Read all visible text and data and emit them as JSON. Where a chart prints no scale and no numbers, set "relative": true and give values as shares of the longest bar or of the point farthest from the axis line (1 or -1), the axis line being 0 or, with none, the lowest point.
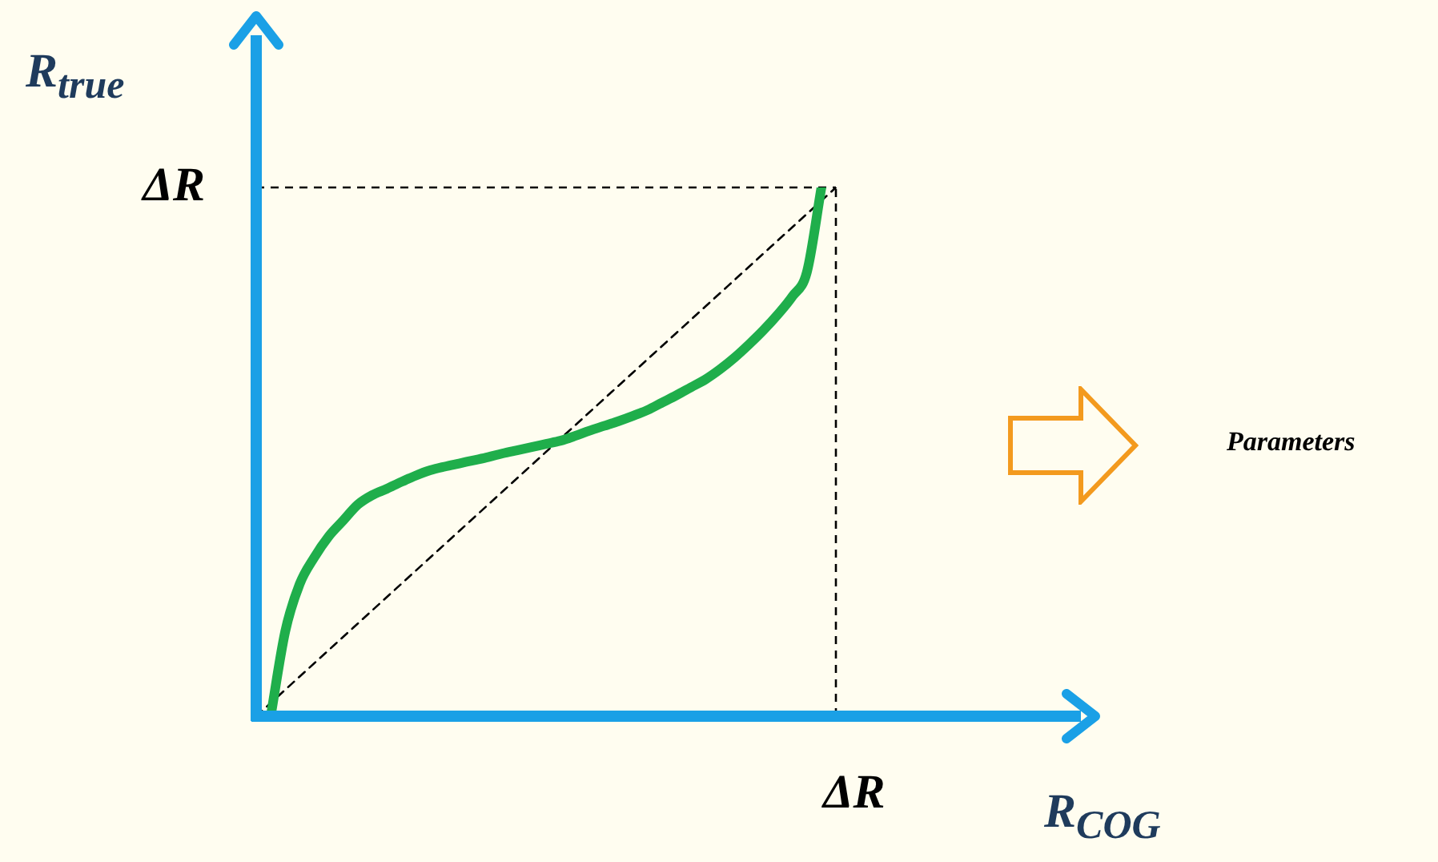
{
  "chart_data": {
    "type": "line",
    "relative": true,
    "xlabel": "R$_{COG}$",
    "ylabel": "R$_{true}$",
    "tick_labels": false,
    "legend": false,
    "marker": "none",
    "categories": [
      null,
      null,
      null,
      null,
      null,
      null,
      null,
      null,
      null,
      null,
      null,
      null,
      null,
      null,
      null,
      null,
      null,
      null,
      null,
      null,
      null,
      null,
      null,
      null,
      null,
      null,
      null,
      null,
      null,
      null,
      null,
      null,
      null,
      null,
      null,
      null,
      null,
      null,
      null,
      null,
      null
    ],
    "series": [
      {
        "color": "#1fae4b",
        "line_style": "solid",
        "values": [
          null,
          0,
          0.16,
          0.25,
          0.3,
          0.34,
          0.37,
          0.4,
          0.418,
          0.43,
          0.443,
          0.455,
          0.465,
          0.472,
          0.478,
          0.484,
          0.49,
          0.497,
          0.503,
          0.509,
          0.515,
          0.521,
          0.53,
          0.54,
          0.549,
          0.558,
          0.568,
          0.579,
          0.593,
          0.607,
          0.622,
          0.637,
          0.656,
          0.678,
          0.703,
          0.73,
          0.76,
          0.794,
          0.84,
          1,
          null
        ]
      },
      {
        "color": "#000000",
        "line_style": "dashed",
        "values": [
          0,
          0.025,
          0.05,
          0.075,
          0.1,
          0.125,
          0.15,
          0.175,
          0.2,
          0.225,
          0.25,
          0.275,
          0.3,
          0.325,
          0.35,
          0.375,
          0.4,
          0.425,
          0.45,
          0.475,
          0.5,
          0.525,
          0.55,
          0.575,
          0.6,
          0.625,
          0.65,
          0.675,
          0.7,
          0.725,
          0.75,
          0.775,
          0.8,
          0.825,
          0.85,
          0.875,
          0.9,
          0.925,
          0.95,
          0.975,
          1
        ]
      }
    ],
    "ref_lines": [
      {
        "axis": "y",
        "value": 1,
        "label": "ΔR",
        "color": "#000000",
        "line_style": "dashed"
      }
    ],
    "annotations": [
      "ΔR",
      "Parameters"
    ]
  }
}
